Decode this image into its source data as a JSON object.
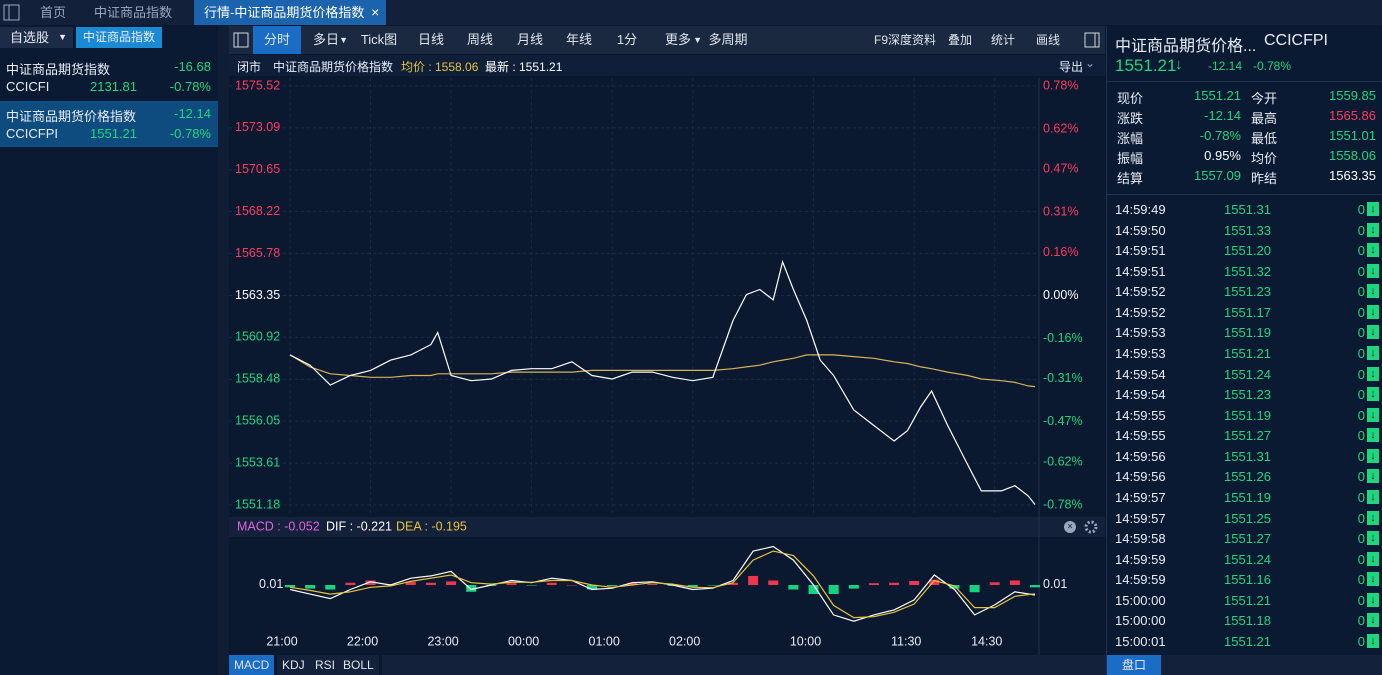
{
  "tabs": [
    "首页",
    "中证商品指数",
    "行情-中证商品期货价格指数"
  ],
  "watchlist": {
    "tabs": [
      "自选股",
      "中证商品指数"
    ],
    "items": [
      {
        "name": "中证商品期货指数",
        "change": "-16.68",
        "code": "CCICFI",
        "price": "2131.81",
        "pct": "-0.78%"
      },
      {
        "name": "中证商品期货价格指数",
        "change": "-12.14",
        "code": "CCICFPI",
        "price": "1551.21",
        "pct": "-0.78%"
      }
    ]
  },
  "toolbar": {
    "left": [
      "分时",
      "多日",
      "Tick图",
      "日线",
      "周线",
      "月线",
      "年线",
      "1分",
      "更多",
      "多周期"
    ],
    "right": [
      "F9深度资料",
      "叠加",
      "统计",
      "画线"
    ]
  },
  "chart_info": {
    "status": "闭市",
    "name": "中证商品期货价格指数",
    "avg": "均价 : 1558.06",
    "last": "最新 : 1551.21",
    "export": "导出"
  },
  "chart_data": [
    {
      "type": "line",
      "x": [
        0,
        15,
        30,
        45,
        60,
        75,
        90,
        105,
        110,
        120,
        135,
        150,
        165,
        180,
        195,
        210,
        225,
        240,
        255,
        270,
        285,
        300,
        315,
        330,
        340,
        350,
        360,
        367,
        375,
        385,
        395,
        405,
        420,
        435,
        450,
        460,
        470,
        478,
        490,
        505,
        515,
        530,
        540,
        550,
        555
      ],
      "series": [
        {
          "color": "#ffffff",
          "values": [
            1559.9,
            1559.3,
            1558.15,
            1558.7,
            1559.0,
            1559.6,
            1559.9,
            1560.5,
            1561.2,
            1558.7,
            1558.4,
            1558.5,
            1559.0,
            1559.1,
            1559.1,
            1559.5,
            1558.7,
            1558.5,
            1558.9,
            1558.9,
            1558.6,
            1558.4,
            1558.6,
            1561.9,
            1563.4,
            1563.7,
            1563.1,
            1565.3,
            1563.7,
            1561.9,
            1559.6,
            1558.7,
            1556.7,
            1555.8,
            1554.9,
            1555.5,
            1556.9,
            1557.8,
            1555.8,
            1553.5,
            1552.0,
            1552.0,
            1552.3,
            1551.7,
            1551.21
          ]
        },
        {
          "color": "#d9b25a",
          "values": [
            1559.9,
            1559.2,
            1558.8,
            1558.7,
            1558.6,
            1558.6,
            1558.7,
            1558.7,
            1558.8,
            1558.8,
            1558.8,
            1558.8,
            1558.9,
            1558.9,
            1558.9,
            1558.9,
            1559.0,
            1559.0,
            1559.0,
            1559.0,
            1559.0,
            1559.0,
            1559.0,
            1559.1,
            1559.2,
            1559.3,
            1559.5,
            1559.6,
            1559.7,
            1559.9,
            1559.9,
            1559.9,
            1559.8,
            1559.7,
            1559.5,
            1559.4,
            1559.2,
            1559.1,
            1558.9,
            1558.7,
            1558.5,
            1558.4,
            1558.3,
            1558.1,
            1558.06
          ]
        }
      ],
      "xlim": [
        0,
        555
      ],
      "xticks": [
        {
          "value": 0,
          "label": "21:00"
        },
        {
          "value": 60,
          "label": "22:00"
        },
        {
          "value": 120,
          "label": "23:00"
        },
        {
          "value": 180,
          "label": "00:00"
        },
        {
          "value": 240,
          "label": "01:00"
        },
        {
          "value": 300,
          "label": "02:00"
        },
        {
          "value": 390,
          "label": "10:00"
        },
        {
          "value": 465,
          "label": "11:30"
        },
        {
          "value": 525,
          "label": "14:30"
        }
      ],
      "ylim": [
        1551.18,
        1575.52
      ],
      "yticks": [
        1575.52,
        1573.09,
        1570.65,
        1568.22,
        1565.78,
        1563.35,
        1560.92,
        1558.48,
        1556.05,
        1553.61,
        1551.18
      ],
      "y2lim": [
        -0.78,
        0.78
      ],
      "y2ticks": [
        {
          "value": 0.78,
          "label": "0.78%"
        },
        {
          "value": 0.62,
          "label": "0.62%"
        },
        {
          "value": 0.47,
          "label": "0.47%"
        },
        {
          "value": 0.31,
          "label": "0.31%"
        },
        {
          "value": 0.16,
          "label": "0.16%"
        },
        {
          "value": 0,
          "label": "0.00%"
        },
        {
          "value": -0.16,
          "label": "-0.16%"
        },
        {
          "value": -0.31,
          "label": "-0.31%"
        },
        {
          "value": -0.47,
          "label": "-0.47%"
        },
        {
          "value": -0.62,
          "label": "-0.62%"
        },
        {
          "value": -0.78,
          "label": "-0.78%"
        }
      ],
      "grid": true
    },
    {
      "type": "macd",
      "x": [
        0,
        15,
        30,
        45,
        60,
        75,
        90,
        105,
        120,
        135,
        150,
        165,
        180,
        195,
        210,
        225,
        240,
        255,
        270,
        285,
        300,
        315,
        330,
        345,
        360,
        375,
        390,
        405,
        420,
        435,
        450,
        465,
        480,
        495,
        510,
        525,
        540,
        555
      ],
      "series": [
        {
          "name": "MACD : -0.052",
          "color": "#e462e4",
          "up_color": "#f0364e",
          "down_color": "#17d37f",
          "values": [
            -0.05,
            -0.08,
            -0.1,
            0.05,
            0.1,
            0.02,
            0.07,
            0.05,
            0.08,
            -0.15,
            -0.02,
            0.04,
            -0.01,
            0.05,
            0,
            -0.1,
            -0.02,
            0.05,
            0.02,
            -0.02,
            -0.05,
            -0.01,
            0.05,
            0.2,
            0.1,
            -0.1,
            -0.2,
            -0.2,
            -0.08,
            0.04,
            0.05,
            0.09,
            0.12,
            -0.08,
            -0.16,
            0.06,
            0.1,
            -0.052
          ]
        },
        {
          "name": "DIF : -0.221",
          "color": "#ffffff",
          "values": [
            -0.1,
            -0.2,
            -0.3,
            -0.1,
            0.07,
            0,
            0.15,
            0.2,
            0.3,
            -0.1,
            0,
            0.1,
            0.05,
            0.15,
            0.1,
            -0.1,
            -0.07,
            0.05,
            0.07,
            0,
            -0.1,
            -0.07,
            0.1,
            0.75,
            0.85,
            0.55,
            0,
            -0.66,
            -0.8,
            -0.66,
            -0.55,
            -0.33,
            0.22,
            -0.1,
            -0.66,
            -0.44,
            -0.15,
            -0.221
          ]
        },
        {
          "name": "DEA : -0.195",
          "color": "#e8c33a",
          "values": [
            -0.05,
            -0.12,
            -0.2,
            -0.15,
            -0.05,
            -0.02,
            0.08,
            0.15,
            0.22,
            0.05,
            0.02,
            0.06,
            0.06,
            0.1,
            0.1,
            0,
            -0.05,
            0,
            0.05,
            0.02,
            -0.05,
            -0.06,
            0.05,
            0.55,
            0.75,
            0.65,
            0.2,
            -0.45,
            -0.72,
            -0.7,
            -0.6,
            -0.42,
            0.1,
            -0.02,
            -0.5,
            -0.5,
            -0.25,
            -0.195
          ]
        }
      ],
      "xlim": [
        0,
        555
      ],
      "ylim": [
        -0.95,
        0.95
      ],
      "yticks": [
        0.01
      ],
      "y2lim": [
        -0.95,
        0.95
      ],
      "y2ticks": [
        0.01
      ]
    }
  ],
  "indicator_tabs": [
    "MACD",
    "KDJ",
    "RSI",
    "BOLL"
  ],
  "quote": {
    "name": "中证商品期货价格...",
    "code": "CCICFPI",
    "price": "1551.21",
    "change": "-12.14",
    "pct": "-0.78%",
    "rows": [
      [
        "现价",
        "1551.21",
        "今开",
        "1559.85"
      ],
      [
        "涨跌",
        "-12.14",
        "最高",
        "1565.86"
      ],
      [
        "涨幅",
        "-0.78%",
        "最低",
        "1551.01"
      ],
      [
        "振幅",
        "0.95%",
        "均价",
        "1558.06"
      ],
      [
        "结算",
        "1557.09",
        "昨结",
        "1563.35"
      ]
    ]
  },
  "ticks": [
    [
      "14:59:49",
      "1551.31",
      "0"
    ],
    [
      "14:59:50",
      "1551.33",
      "0"
    ],
    [
      "14:59:51",
      "1551.20",
      "0"
    ],
    [
      "14:59:51",
      "1551.32",
      "0"
    ],
    [
      "14:59:52",
      "1551.23",
      "0"
    ],
    [
      "14:59:52",
      "1551.17",
      "0"
    ],
    [
      "14:59:53",
      "1551.19",
      "0"
    ],
    [
      "14:59:53",
      "1551.21",
      "0"
    ],
    [
      "14:59:54",
      "1551.24",
      "0"
    ],
    [
      "14:59:54",
      "1551.23",
      "0"
    ],
    [
      "14:59:55",
      "1551.19",
      "0"
    ],
    [
      "14:59:55",
      "1551.27",
      "0"
    ],
    [
      "14:59:56",
      "1551.31",
      "0"
    ],
    [
      "14:59:56",
      "1551.26",
      "0"
    ],
    [
      "14:59:57",
      "1551.19",
      "0"
    ],
    [
      "14:59:57",
      "1551.25",
      "0"
    ],
    [
      "14:59:58",
      "1551.27",
      "0"
    ],
    [
      "14:59:59",
      "1551.24",
      "0"
    ],
    [
      "14:59:59",
      "1551.16",
      "0"
    ],
    [
      "15:00:00",
      "1551.21",
      "0"
    ],
    [
      "15:00:00",
      "1551.18",
      "0"
    ],
    [
      "15:00:01",
      "1551.21",
      "0"
    ]
  ],
  "panel_tab": "盘口"
}
